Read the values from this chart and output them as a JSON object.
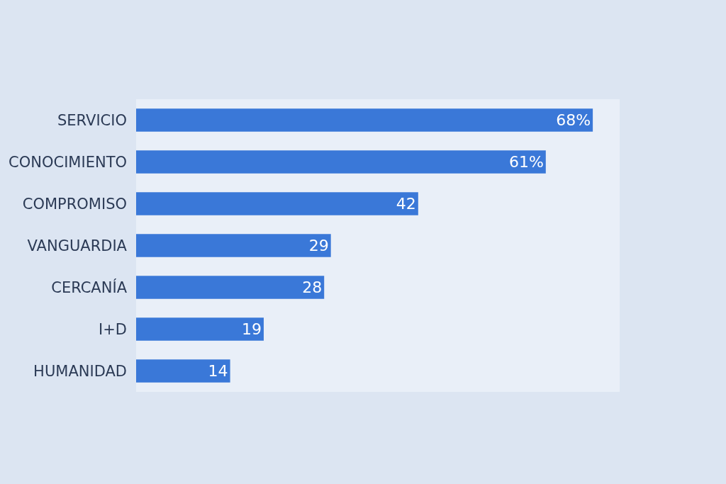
{
  "chart_data": {
    "type": "bar",
    "orientation": "horizontal",
    "categories": [
      "SERVICIO",
      "CONOCIMIENTO",
      "COMPROMISO",
      "VANGUARDIA",
      "CERCANÍA",
      "I+D",
      "HUMANIDAD"
    ],
    "values": [
      68,
      61,
      42,
      29,
      28,
      19,
      14
    ],
    "value_labels": [
      "68%",
      "61%",
      "42",
      "29",
      "28",
      "19",
      "14"
    ],
    "color": "#3a78d8",
    "xlim": [
      0,
      72
    ],
    "tick_labels": "y",
    "grid": false
  }
}
